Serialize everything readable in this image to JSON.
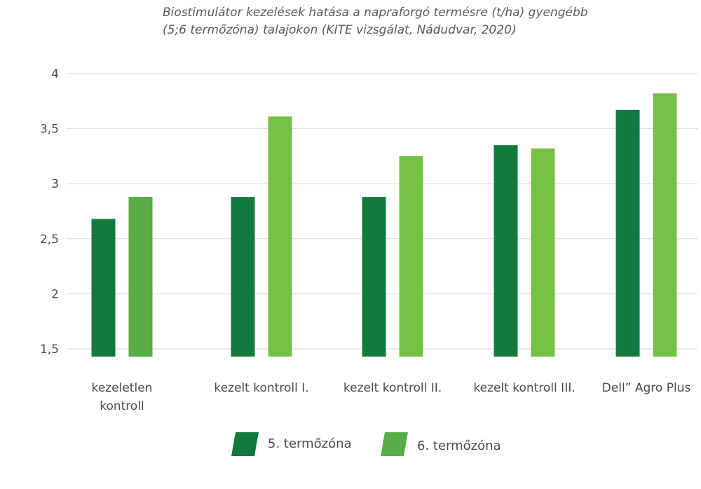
{
  "chart_data": {
    "type": "bar",
    "title_lines": [
      "Biostimulátor kezelések hatása a napraforgó termésre (t/ha) gyengébb",
      "(5;6 termőzóna) talajokon (KITE vizsgálat, Nádudvar, 2020)"
    ],
    "categories": [
      [
        "kezeletlen",
        "kontroll"
      ],
      [
        "kezelt kontroll I."
      ],
      [
        "kezelt kontroll II."
      ],
      [
        "kezelt kontroll III."
      ],
      [
        "Dell” Agro Plus"
      ]
    ],
    "series": [
      {
        "name": "5. termőzóna",
        "color": "#127a3e",
        "values": [
          2.68,
          2.88,
          2.88,
          3.35,
          3.67
        ]
      },
      {
        "name": "6. termőzóna",
        "color_left": "#57ad48",
        "color": "#76c044",
        "values": [
          2.88,
          3.61,
          3.25,
          3.32,
          3.82
        ]
      }
    ],
    "yticks": [
      "1,5",
      "2",
      "2,5",
      "3",
      "3,5",
      "4"
    ],
    "ytick_values": [
      1.5,
      2,
      2.5,
      3,
      3.5,
      4
    ],
    "ylim": [
      1.5,
      4
    ],
    "bar_base": 1.43,
    "grid": true,
    "legend_position": "bottom-center",
    "gridline_color": "#d9d9d9"
  }
}
